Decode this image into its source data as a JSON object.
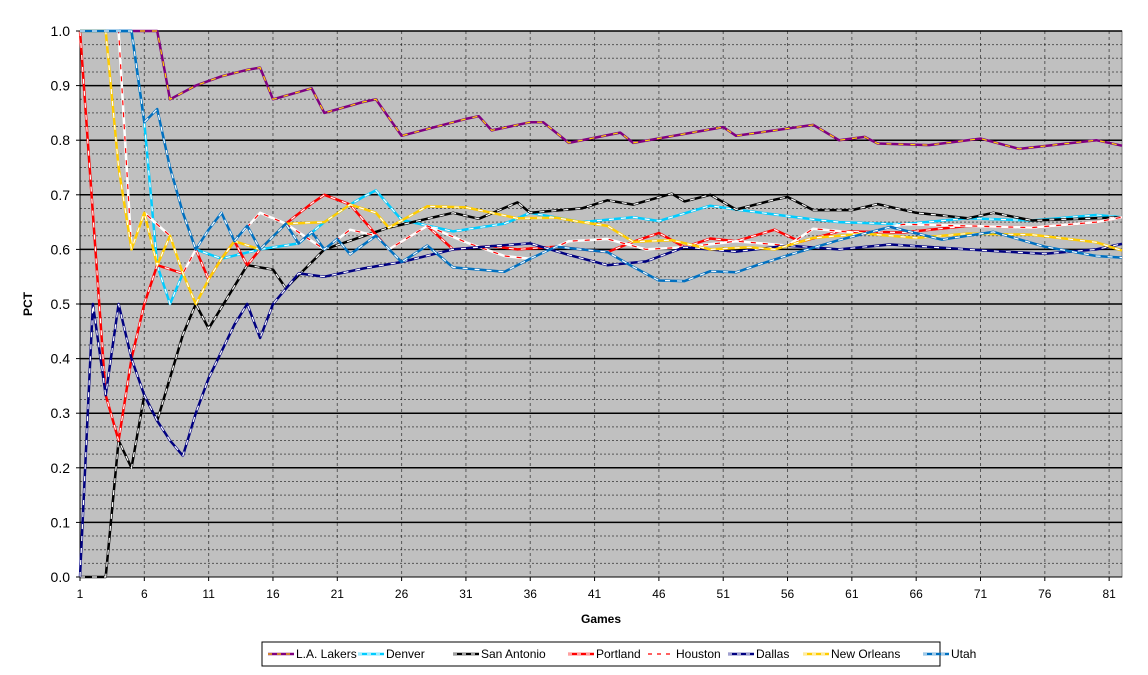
{
  "chart_data": {
    "type": "line",
    "title": "",
    "xlabel": "Games",
    "ylabel": "PCT",
    "xlim": [
      1,
      82
    ],
    "ylim": [
      0,
      1
    ],
    "x_ticks": [
      "1",
      "6",
      "11",
      "16",
      "21",
      "26",
      "31",
      "36",
      "41",
      "46",
      "51",
      "56",
      "61",
      "66",
      "71",
      "76",
      "81"
    ],
    "y_ticks": [
      "0.0",
      "0.1",
      "0.2",
      "0.3",
      "0.4",
      "0.5",
      "0.6",
      "0.7",
      "0.8",
      "0.9",
      "1.0"
    ],
    "grid": "on",
    "legend_position": "bottom",
    "plot_background": "#c0c0c0",
    "series": [
      {
        "name": "L.A. Lakers",
        "color": "#800080",
        "dash": "#ffd700",
        "points": [
          [
            1,
            1.0
          ],
          [
            6,
            1.0
          ],
          [
            7,
            1.0
          ],
          [
            8,
            0.875
          ],
          [
            10,
            0.9
          ],
          [
            12,
            0.917
          ],
          [
            14,
            0.929
          ],
          [
            15,
            0.933
          ],
          [
            16,
            0.875
          ],
          [
            19,
            0.895
          ],
          [
            20,
            0.85
          ],
          [
            23,
            0.87
          ],
          [
            24,
            0.875
          ],
          [
            26,
            0.808
          ],
          [
            31,
            0.839
          ],
          [
            32,
            0.844
          ],
          [
            33,
            0.818
          ],
          [
            36,
            0.833
          ],
          [
            37,
            0.833
          ],
          [
            39,
            0.795
          ],
          [
            43,
            0.814
          ],
          [
            44,
            0.795
          ],
          [
            51,
            0.824
          ],
          [
            52,
            0.808
          ],
          [
            58,
            0.828
          ],
          [
            60,
            0.8
          ],
          [
            62,
            0.806
          ],
          [
            63,
            0.794
          ],
          [
            67,
            0.791
          ],
          [
            71,
            0.803
          ],
          [
            74,
            0.784
          ],
          [
            80,
            0.8
          ],
          [
            82,
            0.79
          ]
        ]
      },
      {
        "name": "Denver",
        "color": "#00ccff",
        "dash": "#ffffff",
        "points": [
          [
            1,
            1.0
          ],
          [
            5,
            1.0
          ],
          [
            6,
            0.833
          ],
          [
            7,
            0.571
          ],
          [
            8,
            0.5
          ],
          [
            9,
            0.556
          ],
          [
            10,
            0.6
          ],
          [
            12,
            0.583
          ],
          [
            15,
            0.6
          ],
          [
            18,
            0.611
          ],
          [
            20,
            0.65
          ],
          [
            22,
            0.682
          ],
          [
            23,
            0.696
          ],
          [
            24,
            0.708
          ],
          [
            26,
            0.654
          ],
          [
            30,
            0.633
          ],
          [
            34,
            0.647
          ],
          [
            36,
            0.667
          ],
          [
            40,
            0.65
          ],
          [
            44,
            0.659
          ],
          [
            46,
            0.652
          ],
          [
            50,
            0.68
          ],
          [
            52,
            0.673
          ],
          [
            56,
            0.661
          ],
          [
            58,
            0.655
          ],
          [
            60,
            0.65
          ],
          [
            65,
            0.646
          ],
          [
            70,
            0.657
          ],
          [
            75,
            0.653
          ],
          [
            80,
            0.663
          ],
          [
            82,
            0.659
          ]
        ]
      },
      {
        "name": "San Antonio",
        "color": "#000000",
        "dash": "#ffffff",
        "points": [
          [
            1,
            0.0
          ],
          [
            3,
            0.0
          ],
          [
            4,
            0.25
          ],
          [
            5,
            0.2
          ],
          [
            6,
            0.333
          ],
          [
            7,
            0.286
          ],
          [
            9,
            0.444
          ],
          [
            10,
            0.5
          ],
          [
            11,
            0.455
          ],
          [
            14,
            0.571
          ],
          [
            16,
            0.563
          ],
          [
            17,
            0.529
          ],
          [
            20,
            0.6
          ],
          [
            25,
            0.64
          ],
          [
            30,
            0.667
          ],
          [
            32,
            0.656
          ],
          [
            35,
            0.686
          ],
          [
            36,
            0.667
          ],
          [
            40,
            0.675
          ],
          [
            42,
            0.69
          ],
          [
            44,
            0.682
          ],
          [
            47,
            0.702
          ],
          [
            48,
            0.688
          ],
          [
            50,
            0.7
          ],
          [
            52,
            0.673
          ],
          [
            55,
            0.691
          ],
          [
            56,
            0.696
          ],
          [
            58,
            0.672
          ],
          [
            61,
            0.672
          ],
          [
            63,
            0.683
          ],
          [
            66,
            0.667
          ],
          [
            70,
            0.657
          ],
          [
            72,
            0.667
          ],
          [
            75,
            0.653
          ],
          [
            82,
            0.659
          ]
        ]
      },
      {
        "name": "Portland",
        "color": "#ff0000",
        "dash": "#ffffff",
        "points": [
          [
            1,
            1.0
          ],
          [
            3,
            0.333
          ],
          [
            4,
            0.25
          ],
          [
            5,
            0.4
          ],
          [
            6,
            0.5
          ],
          [
            7,
            0.571
          ],
          [
            9,
            0.556
          ],
          [
            10,
            0.6
          ],
          [
            11,
            0.545
          ],
          [
            12,
            0.583
          ],
          [
            13,
            0.615
          ],
          [
            14,
            0.571
          ],
          [
            15,
            0.6
          ],
          [
            17,
            0.647
          ],
          [
            19,
            0.684
          ],
          [
            20,
            0.7
          ],
          [
            22,
            0.682
          ],
          [
            25,
            0.6
          ],
          [
            28,
            0.643
          ],
          [
            30,
            0.6
          ],
          [
            33,
            0.606
          ],
          [
            35,
            0.6
          ],
          [
            38,
            0.605
          ],
          [
            40,
            0.6
          ],
          [
            42,
            0.595
          ],
          [
            44,
            0.614
          ],
          [
            46,
            0.63
          ],
          [
            48,
            0.604
          ],
          [
            50,
            0.62
          ],
          [
            52,
            0.615
          ],
          [
            55,
            0.636
          ],
          [
            57,
            0.614
          ],
          [
            60,
            0.633
          ],
          [
            65,
            0.631
          ],
          [
            70,
            0.643
          ],
          [
            75,
            0.64
          ],
          [
            80,
            0.65
          ],
          [
            82,
            0.659
          ]
        ]
      },
      {
        "name": "Houston",
        "color": "#ffffff",
        "dash": "#ff0000",
        "points": [
          [
            1,
            1.0
          ],
          [
            4,
            1.0
          ],
          [
            5,
            0.6
          ],
          [
            6,
            0.667
          ],
          [
            8,
            0.625
          ],
          [
            9,
            0.556
          ],
          [
            10,
            0.6
          ],
          [
            11,
            0.636
          ],
          [
            12,
            0.667
          ],
          [
            13,
            0.615
          ],
          [
            15,
            0.667
          ],
          [
            17,
            0.647
          ],
          [
            20,
            0.6
          ],
          [
            22,
            0.636
          ],
          [
            24,
            0.625
          ],
          [
            25,
            0.6
          ],
          [
            28,
            0.643
          ],
          [
            31,
            0.613
          ],
          [
            34,
            0.588
          ],
          [
            36,
            0.583
          ],
          [
            39,
            0.615
          ],
          [
            42,
            0.619
          ],
          [
            45,
            0.6
          ],
          [
            48,
            0.604
          ],
          [
            52,
            0.615
          ],
          [
            56,
            0.607
          ],
          [
            58,
            0.638
          ],
          [
            62,
            0.629
          ],
          [
            65,
            0.646
          ],
          [
            70,
            0.643
          ],
          [
            75,
            0.64
          ],
          [
            80,
            0.65
          ],
          [
            82,
            0.659
          ]
        ]
      },
      {
        "name": "Dallas",
        "color": "#000080",
        "dash": "#ffffff",
        "points": [
          [
            1,
            0.0
          ],
          [
            2,
            0.5
          ],
          [
            3,
            0.333
          ],
          [
            4,
            0.5
          ],
          [
            5,
            0.4
          ],
          [
            6,
            0.333
          ],
          [
            7,
            0.286
          ],
          [
            8,
            0.25
          ],
          [
            9,
            0.222
          ],
          [
            10,
            0.3
          ],
          [
            11,
            0.364
          ],
          [
            13,
            0.462
          ],
          [
            14,
            0.5
          ],
          [
            15,
            0.438
          ],
          [
            16,
            0.5
          ],
          [
            18,
            0.556
          ],
          [
            20,
            0.55
          ],
          [
            23,
            0.565
          ],
          [
            26,
            0.577
          ],
          [
            30,
            0.6
          ],
          [
            33,
            0.606
          ],
          [
            36,
            0.611
          ],
          [
            39,
            0.59
          ],
          [
            42,
            0.571
          ],
          [
            45,
            0.578
          ],
          [
            48,
            0.604
          ],
          [
            52,
            0.596
          ],
          [
            56,
            0.607
          ],
          [
            60,
            0.6
          ],
          [
            64,
            0.609
          ],
          [
            68,
            0.603
          ],
          [
            72,
            0.597
          ],
          [
            76,
            0.592
          ],
          [
            80,
            0.6
          ],
          [
            82,
            0.61
          ]
        ]
      },
      {
        "name": "New Orleans",
        "color": "#ffcc00",
        "dash": "#ffffff",
        "points": [
          [
            1,
            1.0
          ],
          [
            3,
            1.0
          ],
          [
            4,
            0.75
          ],
          [
            5,
            0.6
          ],
          [
            6,
            0.667
          ],
          [
            7,
            0.571
          ],
          [
            8,
            0.625
          ],
          [
            9,
            0.556
          ],
          [
            10,
            0.5
          ],
          [
            11,
            0.545
          ],
          [
            12,
            0.583
          ],
          [
            13,
            0.615
          ],
          [
            15,
            0.6
          ],
          [
            17,
            0.647
          ],
          [
            20,
            0.65
          ],
          [
            22,
            0.682
          ],
          [
            24,
            0.667
          ],
          [
            25,
            0.64
          ],
          [
            28,
            0.679
          ],
          [
            31,
            0.677
          ],
          [
            33,
            0.667
          ],
          [
            35,
            0.657
          ],
          [
            38,
            0.658
          ],
          [
            40,
            0.65
          ],
          [
            42,
            0.643
          ],
          [
            44,
            0.614
          ],
          [
            47,
            0.617
          ],
          [
            50,
            0.6
          ],
          [
            53,
            0.604
          ],
          [
            55,
            0.6
          ],
          [
            58,
            0.621
          ],
          [
            62,
            0.629
          ],
          [
            66,
            0.621
          ],
          [
            70,
            0.629
          ],
          [
            75,
            0.627
          ],
          [
            80,
            0.613
          ],
          [
            82,
            0.598
          ]
        ]
      },
      {
        "name": "Utah",
        "color": "#0070c0",
        "dash": "#ffffff",
        "points": [
          [
            1,
            1.0
          ],
          [
            5,
            1.0
          ],
          [
            6,
            0.833
          ],
          [
            7,
            0.857
          ],
          [
            8,
            0.75
          ],
          [
            9,
            0.667
          ],
          [
            10,
            0.6
          ],
          [
            11,
            0.636
          ],
          [
            12,
            0.667
          ],
          [
            13,
            0.615
          ],
          [
            14,
            0.643
          ],
          [
            15,
            0.6
          ],
          [
            17,
            0.647
          ],
          [
            18,
            0.611
          ],
          [
            19,
            0.632
          ],
          [
            20,
            0.6
          ],
          [
            21,
            0.619
          ],
          [
            22,
            0.591
          ],
          [
            24,
            0.625
          ],
          [
            26,
            0.577
          ],
          [
            28,
            0.607
          ],
          [
            30,
            0.567
          ],
          [
            32,
            0.563
          ],
          [
            34,
            0.559
          ],
          [
            36,
            0.583
          ],
          [
            38,
            0.605
          ],
          [
            40,
            0.6
          ],
          [
            42,
            0.595
          ],
          [
            44,
            0.568
          ],
          [
            46,
            0.543
          ],
          [
            48,
            0.542
          ],
          [
            50,
            0.56
          ],
          [
            52,
            0.558
          ],
          [
            54,
            0.574
          ],
          [
            56,
            0.589
          ],
          [
            60,
            0.617
          ],
          [
            64,
            0.641
          ],
          [
            68,
            0.618
          ],
          [
            72,
            0.632
          ],
          [
            76,
            0.605
          ],
          [
            80,
            0.588
          ],
          [
            82,
            0.585
          ]
        ]
      }
    ]
  }
}
